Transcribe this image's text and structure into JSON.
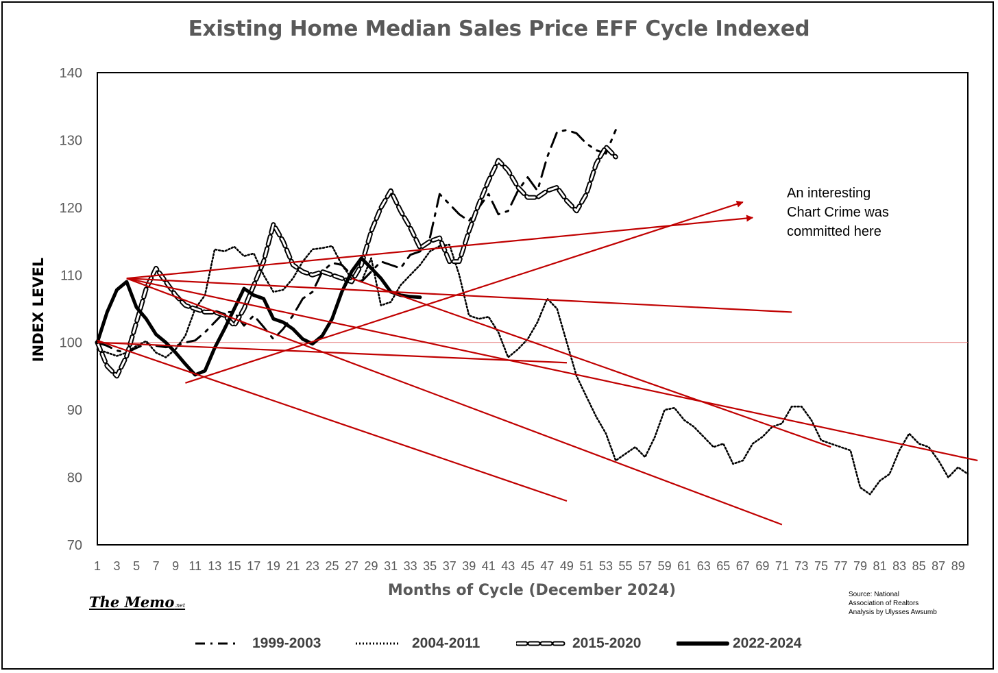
{
  "chart_data": {
    "type": "line",
    "title": "Existing Home Median Sales Price EFF Cycle Indexed",
    "xlabel": "Months of Cycle (December 2024)",
    "ylabel": "INDEX LEVEL",
    "xlim": [
      1,
      90
    ],
    "ylim": [
      70,
      140
    ],
    "yticks": [
      70,
      80,
      90,
      100,
      110,
      120,
      130,
      140
    ],
    "xticks": [
      1,
      3,
      5,
      7,
      9,
      11,
      13,
      15,
      17,
      19,
      21,
      23,
      25,
      27,
      29,
      31,
      33,
      35,
      37,
      39,
      41,
      43,
      45,
      47,
      49,
      51,
      53,
      55,
      57,
      59,
      61,
      63,
      65,
      67,
      69,
      71,
      73,
      75,
      77,
      79,
      81,
      83,
      85,
      87,
      89
    ],
    "reference_line": 100,
    "legend_placement": "bottom",
    "series": [
      {
        "name": "1999-2003",
        "style": "dash-dot",
        "color": "#000000",
        "x": [
          1,
          2,
          3,
          4,
          5,
          6,
          7,
          8,
          9,
          10,
          11,
          12,
          13,
          14,
          15,
          16,
          17,
          18,
          19,
          20,
          21,
          22,
          23,
          24,
          25,
          26,
          27,
          28,
          29,
          30,
          31,
          32,
          33,
          34,
          35,
          36,
          37,
          38,
          39,
          40,
          41,
          42,
          43,
          44,
          45,
          46,
          47,
          48,
          49,
          50,
          51,
          52,
          53,
          54
        ],
        "y": [
          100,
          99.5,
          98.8,
          98.5,
          99.2,
          99.8,
          99.5,
          99.3,
          99.5,
          100,
          100.3,
          101.5,
          103,
          104.5,
          104.5,
          102.5,
          104,
          102.3,
          100.5,
          102,
          104,
          106.5,
          107.5,
          110.5,
          111.8,
          111.5,
          110,
          109,
          110.5,
          112,
          111.5,
          111,
          113,
          113.5,
          115.5,
          122,
          120.5,
          119,
          118,
          120,
          122,
          119,
          119.5,
          122.5,
          124.5,
          122.5,
          127.5,
          131.2,
          131.5,
          131,
          129.5,
          128.5,
          128,
          131.5
        ]
      },
      {
        "name": "2004-2011",
        "style": "dotted",
        "color": "#000000",
        "x": [
          1,
          2,
          3,
          4,
          5,
          6,
          7,
          8,
          9,
          10,
          11,
          12,
          13,
          14,
          15,
          16,
          17,
          18,
          19,
          20,
          21,
          22,
          23,
          24,
          25,
          26,
          27,
          28,
          29,
          30,
          31,
          32,
          33,
          34,
          35,
          36,
          37,
          38,
          39,
          40,
          41,
          42,
          43,
          44,
          45,
          46,
          47,
          48,
          49,
          50,
          51,
          52,
          53,
          54,
          55,
          56,
          57,
          58,
          59,
          60,
          61,
          62,
          63,
          64,
          65,
          66,
          67,
          68,
          69,
          70,
          71,
          72,
          73,
          74,
          75,
          76,
          77,
          78,
          79,
          80,
          81,
          82,
          83,
          84,
          85,
          86,
          87,
          88,
          89,
          90
        ],
        "y": [
          99,
          98.5,
          98,
          98.5,
          99.5,
          100.2,
          98.5,
          97.8,
          99,
          101,
          105,
          107,
          113.8,
          113.5,
          114.2,
          112.8,
          113.2,
          110,
          107.5,
          107.8,
          109.5,
          112,
          113.8,
          114,
          114.3,
          111.5,
          109.5,
          109,
          112.5,
          105.5,
          106,
          108.5,
          110,
          111.5,
          113.5,
          114.3,
          114.5,
          110,
          104,
          103.5,
          103.8,
          101.5,
          97.8,
          99,
          100.5,
          103,
          106.5,
          105,
          100,
          95,
          92,
          89,
          86.5,
          82.5,
          83.5,
          84.5,
          83,
          86,
          90,
          90.3,
          88.5,
          87.5,
          86,
          84.5,
          85,
          82,
          82.5,
          85,
          86,
          87.5,
          88,
          90.5,
          90.5,
          88.5,
          85.5,
          85,
          84.5,
          84,
          78.5,
          77.5,
          79.5,
          80.5,
          84,
          86.5,
          85,
          84.5,
          82.5,
          80,
          81.5,
          80.5
        ]
      },
      {
        "name": "2015-2020",
        "style": "dashed",
        "color": "#000000",
        "x": [
          1,
          2,
          3,
          4,
          5,
          6,
          7,
          8,
          9,
          10,
          11,
          12,
          13,
          14,
          15,
          16,
          17,
          18,
          19,
          20,
          21,
          22,
          23,
          24,
          25,
          26,
          27,
          28,
          29,
          30,
          31,
          32,
          33,
          34,
          35,
          36,
          37,
          38,
          39,
          40,
          41,
          42,
          43,
          44,
          45,
          46,
          47,
          48,
          49,
          50,
          51,
          52,
          53,
          54
        ],
        "y": [
          100,
          96.5,
          95,
          98,
          103,
          108,
          111,
          109,
          107,
          105.5,
          105,
          104.5,
          104.5,
          104,
          102.5,
          105,
          108.5,
          112,
          117.5,
          115,
          111.5,
          110.5,
          110,
          110.5,
          110,
          109.5,
          109,
          111.5,
          116.5,
          120,
          122.5,
          119.5,
          117,
          114,
          115,
          115.5,
          112,
          112,
          116.5,
          120.5,
          124,
          127,
          125.5,
          123,
          121.5,
          121.5,
          122.5,
          123,
          121,
          119.5,
          122,
          126.5,
          129,
          127.5
        ]
      },
      {
        "name": "2022-2024",
        "style": "solid-thick",
        "color": "#000000",
        "x": [
          1,
          2,
          3,
          4,
          5,
          6,
          7,
          8,
          9,
          10,
          11,
          12,
          13,
          14,
          15,
          16,
          17,
          18,
          19,
          20,
          21,
          22,
          23,
          24,
          25,
          26,
          27,
          28,
          29,
          30,
          31,
          32,
          33,
          34
        ],
        "y": [
          100,
          104.5,
          107.8,
          109,
          105.2,
          103.5,
          101.2,
          100,
          98.5,
          96.8,
          95.2,
          95.8,
          99.2,
          102,
          105,
          108,
          107,
          106.5,
          103.5,
          103,
          102,
          100.5,
          99.8,
          101,
          103.5,
          107.5,
          110.5,
          112.5,
          111,
          109.5,
          107.5,
          107,
          106.8,
          106.7
        ]
      }
    ],
    "annotation_lines": [
      {
        "x": [
          4,
          72
        ],
        "y": [
          109.5,
          104.5
        ]
      },
      {
        "x": [
          4,
          91
        ],
        "y": [
          109.5,
          82.5
        ]
      },
      {
        "x": [
          4,
          71
        ],
        "y": [
          109.5,
          73
        ]
      },
      {
        "x": [
          1,
          49
        ],
        "y": [
          100,
          97
        ]
      },
      {
        "x": [
          1,
          49
        ],
        "y": [
          100.3,
          76.5
        ]
      },
      {
        "x": [
          27,
          76
        ],
        "y": [
          109.5,
          84.5
        ]
      },
      {
        "x": [
          10,
          67
        ],
        "y": [
          94,
          120.8
        ]
      },
      {
        "x": [
          4,
          68
        ],
        "y": [
          109.5,
          118.5
        ]
      }
    ]
  },
  "annotation_text": [
    "An interesting",
    "Chart Crime was",
    "committed here"
  ],
  "source_text": [
    "Source: National",
    "Association of Realtors",
    "Analysis by Ulysses Awsumb"
  ],
  "logo": {
    "main": "The Memo",
    "suffix": ".net"
  },
  "colors": {
    "series": "#000000",
    "annotation": "#c00000",
    "title": "#595959",
    "reference": "#e06060"
  }
}
